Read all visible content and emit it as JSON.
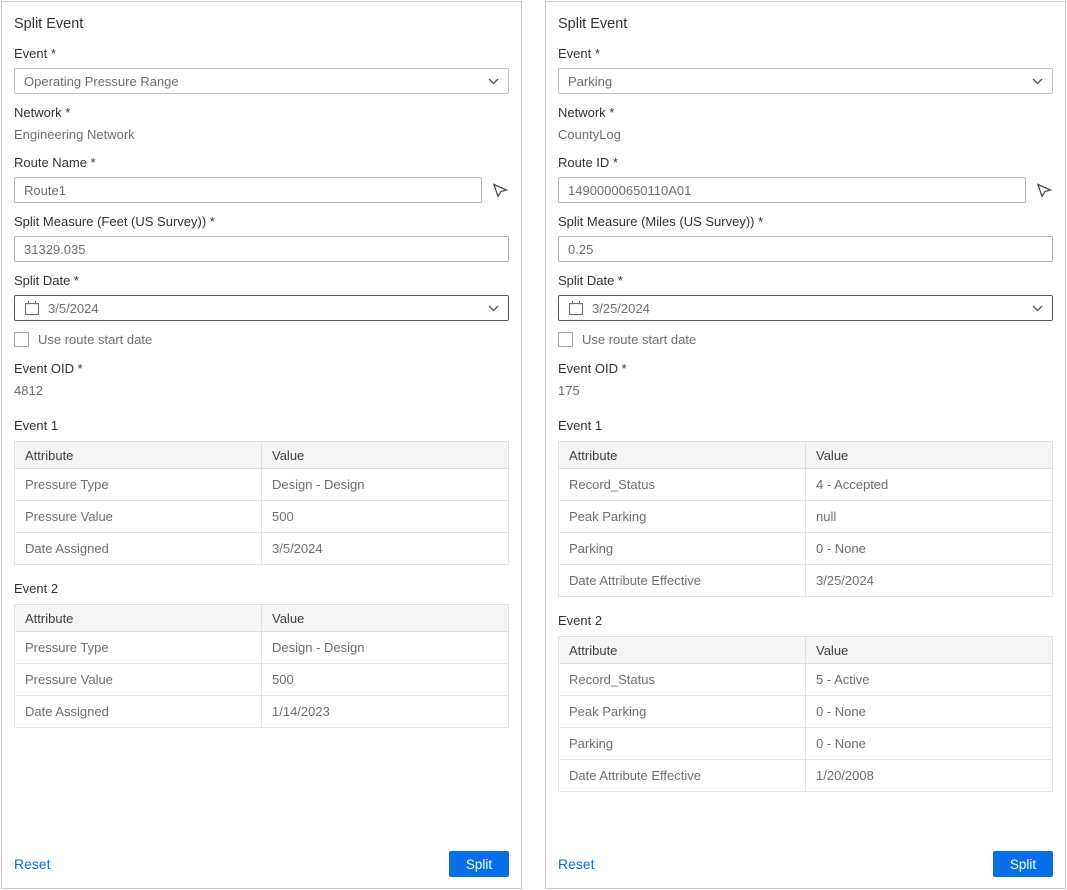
{
  "colors": {
    "accent_blue": "#076fe5",
    "label_text": "#323232",
    "value_text": "#6e6e6e",
    "panel_border": "#c9c9c9",
    "table_header_bg": "#f5f5f5",
    "table_border": "#dfdfdf"
  },
  "icons": {
    "calendar": "calendar-icon",
    "chevron": "chevron-down-icon",
    "picker": "select-on-map-arrow-icon",
    "checkbox": "checkbox"
  },
  "panels": [
    {
      "title": "Split Event",
      "event_label": "Event *",
      "event_value": "Operating Pressure Range",
      "network_label": "Network *",
      "network_value": "Engineering Network",
      "route_label": "Route Name *",
      "route_value": "Route1",
      "measure_label": "Split Measure (Feet (US Survey)) *",
      "measure_value": "31329.035",
      "date_label": "Split Date *",
      "date_value": "3/5/2024",
      "checkbox_label": "Use route start date",
      "oid_label": "Event OID *",
      "oid_value": "4812",
      "tables": [
        {
          "heading": "Event 1",
          "columns": [
            "Attribute",
            "Value"
          ],
          "rows": [
            [
              "Pressure Type",
              "Design - Design"
            ],
            [
              "Pressure Value",
              "500"
            ],
            [
              "Date Assigned",
              "3/5/2024"
            ]
          ]
        },
        {
          "heading": "Event 2",
          "columns": [
            "Attribute",
            "Value"
          ],
          "rows": [
            [
              "Pressure Type",
              "Design - Design"
            ],
            [
              "Pressure Value",
              "500"
            ],
            [
              "Date Assigned",
              "1/14/2023"
            ]
          ]
        }
      ],
      "reset_label": "Reset",
      "split_label": "Split"
    },
    {
      "title": "Split Event",
      "event_label": "Event *",
      "event_value": "Parking",
      "network_label": "Network *",
      "network_value": "CountyLog",
      "route_label": "Route ID *",
      "route_value": "14900000650110A01",
      "measure_label": "Split Measure (Miles (US Survey)) *",
      "measure_value": "0.25",
      "date_label": "Split Date *",
      "date_value": "3/25/2024",
      "checkbox_label": "Use route start date",
      "oid_label": "Event OID *",
      "oid_value": "175",
      "tables": [
        {
          "heading": "Event 1",
          "columns": [
            "Attribute",
            "Value"
          ],
          "rows": [
            [
              "Record_Status",
              "4 - Accepted"
            ],
            [
              "Peak Parking",
              "null"
            ],
            [
              "Parking",
              "0 - None"
            ],
            [
              "Date Attribute Effective",
              "3/25/2024"
            ]
          ]
        },
        {
          "heading": "Event 2",
          "columns": [
            "Attribute",
            "Value"
          ],
          "rows": [
            [
              "Record_Status",
              "5 - Active"
            ],
            [
              "Peak Parking",
              "0 - None"
            ],
            [
              "Parking",
              "0 - None"
            ],
            [
              "Date Attribute Effective",
              "1/20/2008"
            ]
          ]
        }
      ],
      "reset_label": "Reset",
      "split_label": "Split"
    }
  ]
}
